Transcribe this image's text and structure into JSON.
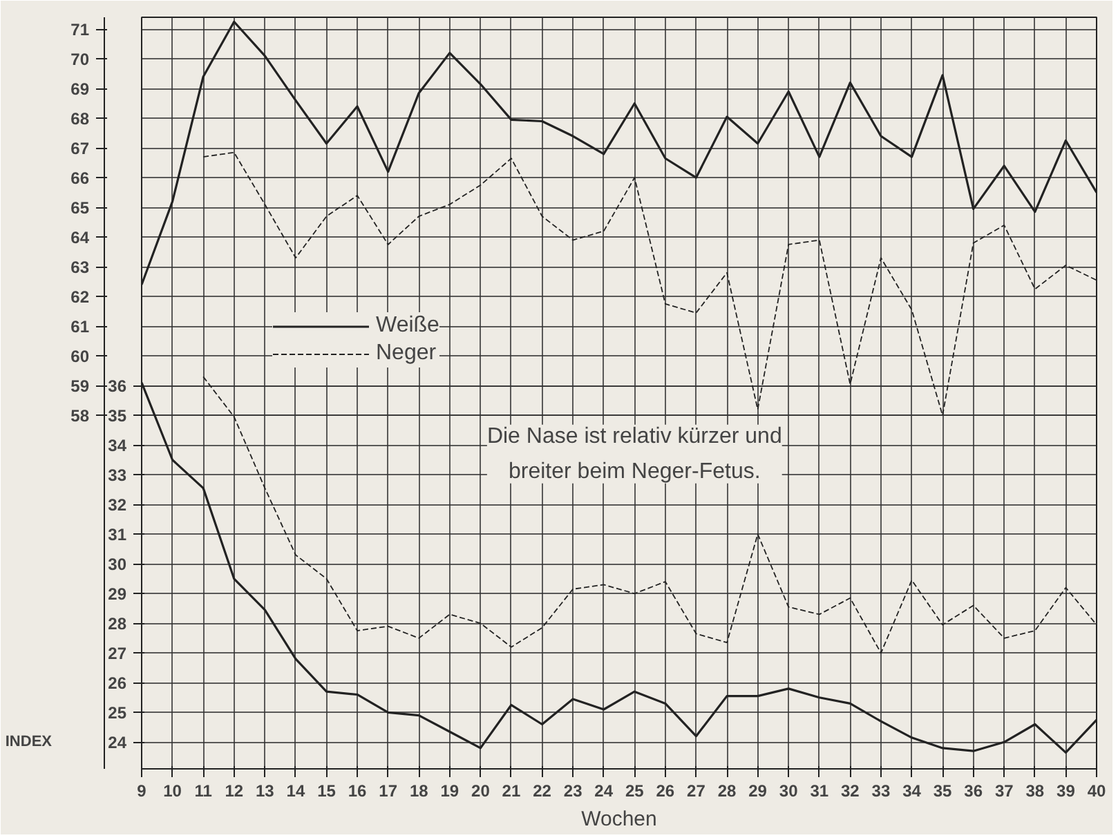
{
  "chart_data": {
    "type": "line",
    "xlabel": "Wochen",
    "x": [
      9,
      10,
      11,
      12,
      13,
      14,
      15,
      16,
      17,
      18,
      19,
      20,
      21,
      22,
      23,
      24,
      25,
      26,
      27,
      28,
      29,
      30,
      31,
      32,
      33,
      34,
      35,
      36,
      37,
      38,
      39,
      40
    ],
    "xlim": [
      9,
      40
    ],
    "xticks": [
      9,
      10,
      11,
      12,
      13,
      14,
      15,
      16,
      17,
      18,
      19,
      20,
      21,
      22,
      23,
      24,
      25,
      26,
      27,
      28,
      29,
      30,
      31,
      32,
      33,
      34,
      35,
      36,
      37,
      38,
      39,
      40
    ],
    "ylim": [
      46.1,
      71.4
    ],
    "yticks": [
      58,
      59,
      60,
      61,
      62,
      63,
      64,
      65,
      66,
      67,
      68,
      69,
      70,
      71
    ],
    "y2lim": [
      23.1,
      48.4
    ],
    "y2ticks": [
      24,
      25,
      26,
      27,
      28,
      29,
      30,
      31,
      32,
      33,
      34,
      35,
      36
    ],
    "grid": true,
    "legend": "left",
    "marker": "none",
    "series": [
      {
        "name": "Weiße",
        "color": "#222222",
        "line_style": "solid",
        "values": [
          62.4,
          65.2,
          69.4,
          71.25,
          70.1,
          68.6,
          67.15,
          68.4,
          66.2,
          68.85,
          70.2,
          69.15,
          67.95,
          67.9,
          67.4,
          66.8,
          68.5,
          66.65,
          66.0,
          68.05,
          67.15,
          68.9,
          66.7,
          69.2,
          67.4,
          66.7,
          69.45,
          64.95,
          66.4,
          64.85,
          67.25,
          65.5
        ]
      },
      {
        "name": "Neger",
        "color": "#222222",
        "line_style": "dashed",
        "values": [
          null,
          null,
          66.7,
          66.85,
          65.1,
          63.3,
          64.7,
          65.4,
          63.75,
          64.7,
          65.1,
          65.75,
          66.65,
          64.7,
          63.9,
          64.2,
          66.0,
          61.75,
          61.45,
          62.8,
          58.2,
          63.75,
          63.9,
          59.05,
          63.3,
          61.55,
          58.0,
          63.8,
          64.4,
          62.25,
          63.05,
          62.55
        ]
      },
      {
        "color": "#222222",
        "line_style": "solid",
        "axis": "y2",
        "values": [
          36.1,
          33.5,
          32.55,
          29.5,
          28.45,
          26.8,
          25.7,
          25.6,
          25.0,
          24.9,
          24.35,
          23.8,
          25.25,
          24.6,
          25.45,
          25.1,
          25.7,
          25.3,
          24.2,
          25.55,
          25.55,
          25.8,
          25.5,
          25.3,
          24.7,
          24.15,
          23.8,
          23.7,
          24.0,
          24.6,
          23.65,
          24.75
        ]
      },
      {
        "color": "#222222",
        "line_style": "dashed",
        "axis": "y2",
        "values": [
          null,
          null,
          36.3,
          34.95,
          32.55,
          30.3,
          29.5,
          27.75,
          27.9,
          27.5,
          28.3,
          28.0,
          27.2,
          27.85,
          29.15,
          29.3,
          29.0,
          29.4,
          27.65,
          27.35,
          31.0,
          28.55,
          28.3,
          28.85,
          27.0,
          29.45,
          27.95,
          28.6,
          27.5,
          27.75,
          29.2,
          27.95
        ]
      }
    ],
    "annotations": [
      "Die Nase ist relativ kürzer und\nbreiter beim Neger-Fetus.",
      "INDEX"
    ]
  }
}
